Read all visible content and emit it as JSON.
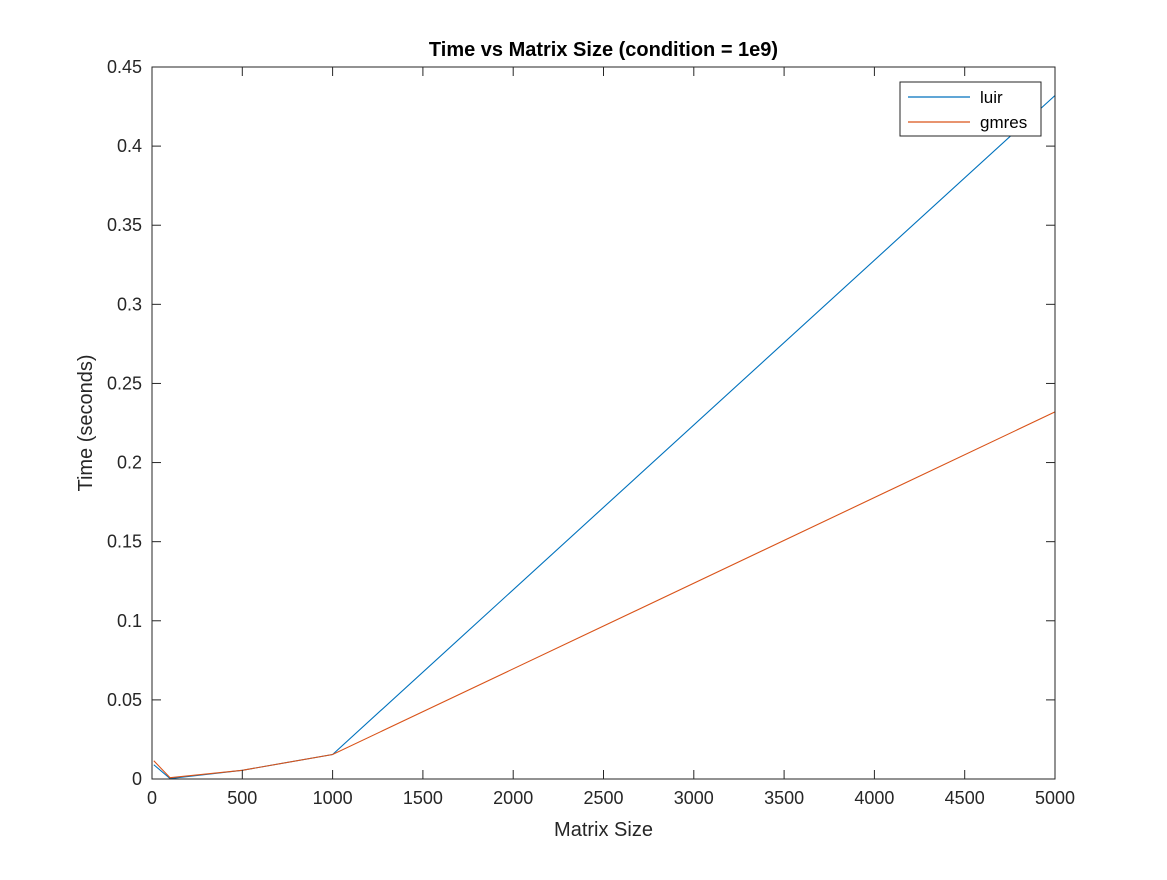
{
  "chart_data": {
    "type": "line",
    "title": "Time vs Matrix Size (condition = 1e9)",
    "xlabel": "Matrix Size",
    "ylabel": "Time (seconds)",
    "xlim": [
      0,
      5000
    ],
    "ylim": [
      0,
      0.45
    ],
    "xticks": [
      0,
      500,
      1000,
      1500,
      2000,
      2500,
      3000,
      3500,
      4000,
      4500,
      5000
    ],
    "yticks": [
      0,
      0.05,
      0.1,
      0.15,
      0.2,
      0.25,
      0.3,
      0.35,
      0.4,
      0.45
    ],
    "xtick_labels": [
      "0",
      "500",
      "1000",
      "1500",
      "2000",
      "2500",
      "3000",
      "3500",
      "4000",
      "4500",
      "5000"
    ],
    "ytick_labels": [
      "0",
      "0.05",
      "0.1",
      "0.15",
      "0.2",
      "0.25",
      "0.3",
      "0.35",
      "0.4",
      "0.45"
    ],
    "grid": false,
    "legend_position": "top-right",
    "series": [
      {
        "name": "luir",
        "color": "#0072BD",
        "x": [
          10,
          100,
          500,
          1000,
          5000
        ],
        "y": [
          0.009,
          0.0003,
          0.0055,
          0.0155,
          0.432
        ]
      },
      {
        "name": "gmres",
        "color": "#D95319",
        "x": [
          10,
          100,
          500,
          1000,
          5000
        ],
        "y": [
          0.0115,
          0.0008,
          0.0055,
          0.0155,
          0.232
        ]
      }
    ]
  }
}
